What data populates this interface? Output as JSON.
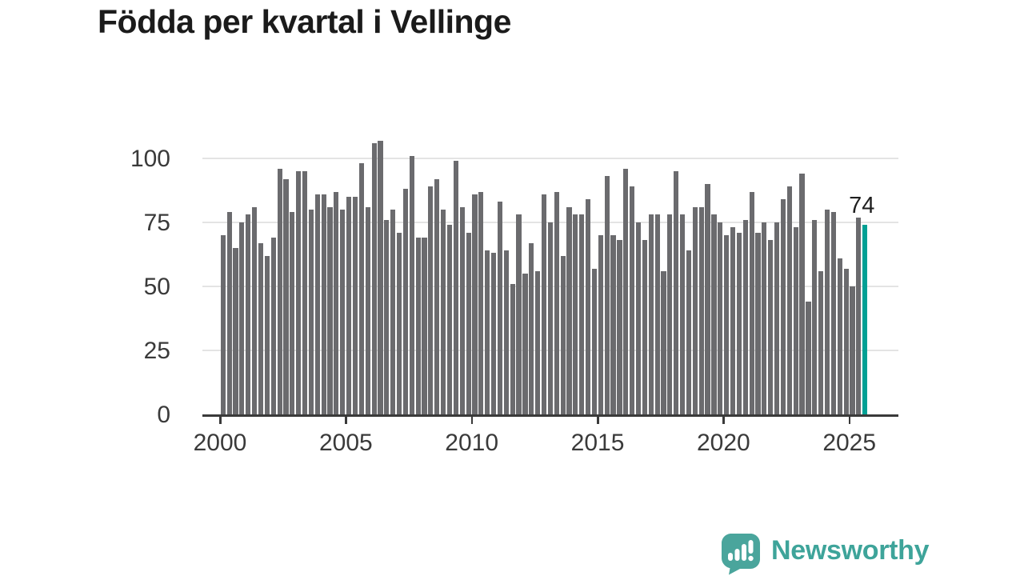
{
  "title": "Födda per kvartal i Vellinge",
  "annotation": {
    "last_value_label": "74"
  },
  "footer": {
    "brand": "Newsworthy",
    "logo_icon": "bar-chart-speech-bubble"
  },
  "colors": {
    "bar": "#6b6b6e",
    "highlight": "#00a094",
    "title_text": "#1b1b1b",
    "axis_text": "#3a3a3a",
    "gridline": "#e4e4e4",
    "axis_line": "#3a3a3a",
    "brand": "#3ea49a"
  },
  "chart_data": {
    "type": "bar",
    "title": "Födda per kvartal i Vellinge",
    "frequency": "quarterly",
    "start_period": "2000-Q1",
    "end_period": "2025-Q3",
    "x_tick_labels": [
      "2000",
      "2005",
      "2010",
      "2015",
      "2020",
      "2025"
    ],
    "y_tick_values": [
      0,
      25,
      50,
      75,
      100
    ],
    "ylim": [
      0,
      110
    ],
    "grid": true,
    "highlight_last_bar": true,
    "last_value_label": "74",
    "values": [
      70,
      79,
      65,
      75,
      78,
      81,
      67,
      62,
      69,
      96,
      92,
      79,
      95,
      95,
      80,
      86,
      86,
      81,
      87,
      80,
      85,
      85,
      98,
      81,
      106,
      107,
      76,
      80,
      71,
      88,
      101,
      69,
      69,
      89,
      92,
      80,
      74,
      99,
      81,
      71,
      86,
      87,
      64,
      63,
      83,
      64,
      51,
      78,
      55,
      67,
      56,
      86,
      75,
      87,
      62,
      81,
      78,
      78,
      84,
      57,
      70,
      93,
      70,
      68,
      96,
      89,
      75,
      68,
      78,
      78,
      56,
      78,
      95,
      78,
      64,
      81,
      81,
      90,
      78,
      75,
      70,
      73,
      71,
      76,
      87,
      71,
      75,
      68,
      75,
      84,
      89,
      73,
      94,
      44,
      76,
      56,
      80,
      79,
      61,
      57,
      50,
      77,
      74
    ]
  }
}
